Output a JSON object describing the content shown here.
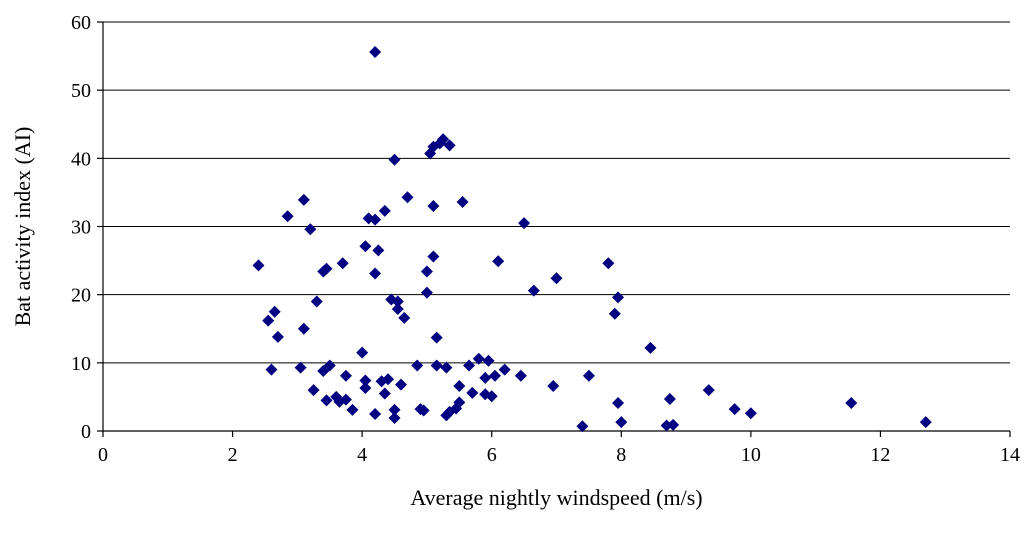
{
  "chart_data": {
    "type": "scatter",
    "title": "",
    "xlabel": "Average nightly windspeed (m/s)",
    "ylabel": "Bat activity index (AI)",
    "xlim": [
      0,
      14
    ],
    "ylim": [
      0,
      60
    ],
    "xticks": [
      0,
      2,
      4,
      6,
      8,
      10,
      12,
      14
    ],
    "yticks": [
      0,
      10,
      20,
      30,
      40,
      50,
      60
    ],
    "grid": "horizontal",
    "legend": "none",
    "marker": "diamond",
    "marker_color": "#000080",
    "points": [
      [
        2.4,
        24.3
      ],
      [
        2.55,
        16.2
      ],
      [
        2.6,
        9.0
      ],
      [
        2.65,
        17.5
      ],
      [
        2.7,
        13.8
      ],
      [
        2.85,
        31.5
      ],
      [
        3.05,
        9.3
      ],
      [
        3.1,
        15.0
      ],
      [
        3.1,
        33.9
      ],
      [
        3.2,
        29.6
      ],
      [
        3.25,
        6.0
      ],
      [
        3.3,
        19.0
      ],
      [
        3.4,
        8.8
      ],
      [
        3.4,
        23.4
      ],
      [
        3.45,
        4.5
      ],
      [
        3.45,
        23.8
      ],
      [
        3.5,
        9.6
      ],
      [
        3.6,
        5.0
      ],
      [
        3.65,
        4.3
      ],
      [
        3.7,
        24.6
      ],
      [
        3.75,
        4.6
      ],
      [
        3.75,
        8.1
      ],
      [
        3.85,
        3.1
      ],
      [
        4.0,
        11.5
      ],
      [
        4.05,
        7.4
      ],
      [
        4.05,
        6.3
      ],
      [
        4.05,
        27.1
      ],
      [
        4.1,
        31.2
      ],
      [
        4.2,
        2.5
      ],
      [
        4.2,
        23.1
      ],
      [
        4.2,
        31.0
      ],
      [
        4.2,
        55.6
      ],
      [
        4.25,
        26.5
      ],
      [
        4.3,
        7.3
      ],
      [
        4.35,
        5.5
      ],
      [
        4.35,
        32.3
      ],
      [
        4.4,
        7.6
      ],
      [
        4.45,
        19.3
      ],
      [
        4.5,
        1.9
      ],
      [
        4.5,
        39.8
      ],
      [
        4.5,
        3.1
      ],
      [
        4.55,
        17.9
      ],
      [
        4.55,
        19.0
      ],
      [
        4.6,
        6.8
      ],
      [
        4.65,
        16.6
      ],
      [
        4.7,
        34.3
      ],
      [
        4.85,
        9.6
      ],
      [
        4.9,
        3.2
      ],
      [
        4.95,
        3.0
      ],
      [
        5.0,
        20.3
      ],
      [
        5.0,
        23.4
      ],
      [
        5.05,
        40.7
      ],
      [
        5.1,
        25.6
      ],
      [
        5.1,
        33.0
      ],
      [
        5.1,
        41.7
      ],
      [
        5.15,
        9.6
      ],
      [
        5.15,
        13.7
      ],
      [
        5.2,
        42.2
      ],
      [
        5.25,
        42.8
      ],
      [
        5.3,
        2.3
      ],
      [
        5.3,
        9.3
      ],
      [
        5.35,
        41.9
      ],
      [
        5.35,
        2.8
      ],
      [
        5.45,
        3.3
      ],
      [
        5.5,
        4.2
      ],
      [
        5.5,
        6.6
      ],
      [
        5.55,
        33.6
      ],
      [
        5.65,
        9.6
      ],
      [
        5.7,
        5.6
      ],
      [
        5.8,
        10.6
      ],
      [
        5.9,
        5.4
      ],
      [
        5.9,
        7.8
      ],
      [
        5.95,
        10.3
      ],
      [
        6.0,
        5.1
      ],
      [
        6.05,
        8.1
      ],
      [
        6.1,
        24.9
      ],
      [
        6.2,
        9.0
      ],
      [
        6.45,
        8.1
      ],
      [
        6.5,
        30.5
      ],
      [
        6.65,
        20.6
      ],
      [
        6.95,
        6.6
      ],
      [
        7.0,
        22.4
      ],
      [
        7.4,
        0.7
      ],
      [
        7.5,
        8.1
      ],
      [
        7.8,
        24.6
      ],
      [
        7.9,
        17.2
      ],
      [
        7.95,
        19.6
      ],
      [
        7.95,
        4.1
      ],
      [
        8.0,
        1.3
      ],
      [
        8.45,
        12.2
      ],
      [
        8.7,
        0.8
      ],
      [
        8.75,
        4.7
      ],
      [
        8.8,
        0.9
      ],
      [
        9.35,
        6.0
      ],
      [
        9.75,
        3.2
      ],
      [
        10.0,
        2.6
      ],
      [
        11.55,
        4.1
      ],
      [
        12.7,
        1.3
      ]
    ]
  }
}
